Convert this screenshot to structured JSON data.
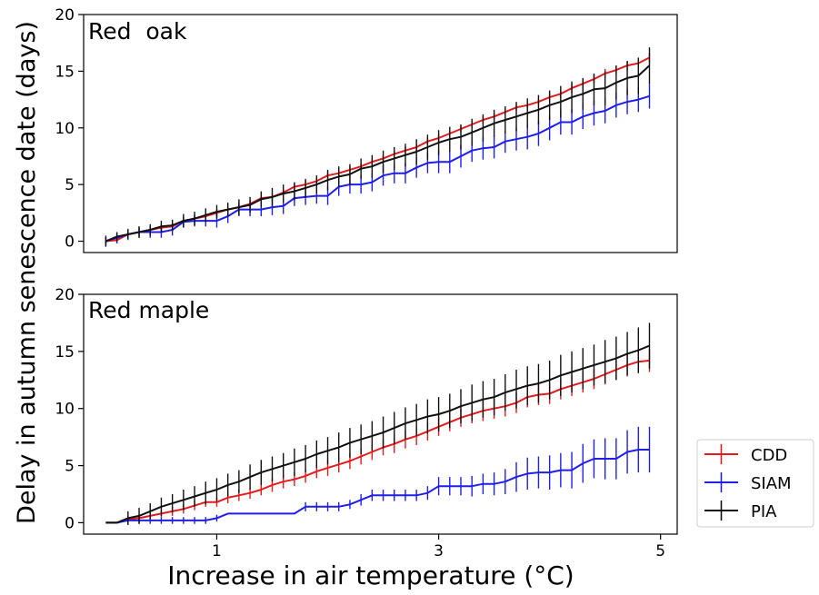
{
  "chart_data": [
    {
      "type": "line",
      "title": "Red  oak",
      "xlabel": "Increase in air temperature (°C)",
      "ylabel": "Delay in autumn senescence date (days)",
      "xlim": [
        -0.2,
        5.15
      ],
      "ylim": [
        -1,
        20
      ],
      "yticks": [
        0,
        5,
        10,
        15,
        20
      ],
      "grid": false,
      "error_bars": true,
      "series": [
        {
          "name": "CDD",
          "color": "#e41a1c",
          "x": [
            0.0,
            0.1,
            0.2,
            0.3,
            0.4,
            0.5,
            0.6,
            0.7,
            0.8,
            0.9,
            1.0,
            1.1,
            1.2,
            1.3,
            1.4,
            1.5,
            1.6,
            1.7,
            1.8,
            1.9,
            2.0,
            2.1,
            2.2,
            2.3,
            2.4,
            2.5,
            2.6,
            2.7,
            2.8,
            2.9,
            3.0,
            3.1,
            3.2,
            3.3,
            3.4,
            3.5,
            3.6,
            3.7,
            3.8,
            3.9,
            4.0,
            4.1,
            4.2,
            4.3,
            4.4,
            4.5,
            4.6,
            4.7,
            4.8,
            4.9
          ],
          "y": [
            0.0,
            0.1,
            0.6,
            0.8,
            1.0,
            1.2,
            1.3,
            1.8,
            2.0,
            2.2,
            2.5,
            2.8,
            3.0,
            3.3,
            3.8,
            3.9,
            4.3,
            4.8,
            5.0,
            5.3,
            5.8,
            6.0,
            6.3,
            6.6,
            7.0,
            7.3,
            7.7,
            8.0,
            8.3,
            8.8,
            9.1,
            9.5,
            9.9,
            10.3,
            10.7,
            11.0,
            11.4,
            11.8,
            12.0,
            12.3,
            12.7,
            13.0,
            13.5,
            13.9,
            14.3,
            14.8,
            15.1,
            15.5,
            15.7,
            16.2
          ],
          "err": [
            0.3,
            0.3,
            0.3,
            0.3,
            0.3,
            0.3,
            0.3,
            0.3,
            0.3,
            0.3,
            0.3,
            0.3,
            0.3,
            0.3,
            0.3,
            0.3,
            0.3,
            0.3,
            0.3,
            0.3,
            0.3,
            0.3,
            0.3,
            0.3,
            0.3,
            0.3,
            0.3,
            0.3,
            0.3,
            0.3,
            0.3,
            0.3,
            0.3,
            0.3,
            0.3,
            0.3,
            0.3,
            0.3,
            0.3,
            0.3,
            0.4,
            0.4,
            0.4,
            0.4,
            0.4,
            0.4,
            0.4,
            0.4,
            0.4,
            0.4
          ]
        },
        {
          "name": "SIAM",
          "color": "#1f1fe8",
          "x": [
            0.0,
            0.1,
            0.2,
            0.3,
            0.4,
            0.5,
            0.6,
            0.7,
            0.8,
            0.9,
            1.0,
            1.1,
            1.2,
            1.3,
            1.4,
            1.5,
            1.6,
            1.7,
            1.8,
            1.9,
            2.0,
            2.1,
            2.2,
            2.3,
            2.4,
            2.5,
            2.6,
            2.7,
            2.8,
            2.9,
            3.0,
            3.1,
            3.2,
            3.3,
            3.4,
            3.5,
            3.6,
            3.7,
            3.8,
            3.9,
            4.0,
            4.1,
            4.2,
            4.3,
            4.4,
            4.5,
            4.6,
            4.7,
            4.8,
            4.9
          ],
          "y": [
            0.0,
            0.3,
            0.6,
            0.8,
            0.8,
            0.8,
            1.0,
            1.7,
            1.8,
            1.8,
            1.8,
            2.2,
            2.8,
            2.8,
            2.8,
            3.0,
            3.1,
            3.8,
            3.9,
            4.0,
            4.0,
            4.8,
            5.0,
            5.0,
            5.2,
            5.8,
            6.0,
            6.0,
            6.5,
            6.9,
            7.0,
            7.0,
            7.5,
            8.0,
            8.2,
            8.3,
            8.8,
            9.0,
            9.2,
            9.5,
            10.0,
            10.5,
            10.5,
            11.0,
            11.3,
            11.5,
            12.0,
            12.3,
            12.5,
            12.8
          ],
          "err": [
            0.5,
            0.5,
            0.5,
            0.5,
            0.5,
            0.5,
            0.5,
            0.5,
            0.5,
            0.5,
            0.6,
            0.6,
            0.6,
            0.6,
            0.6,
            0.7,
            0.7,
            0.7,
            0.7,
            0.7,
            0.8,
            0.8,
            0.8,
            0.8,
            0.8,
            0.9,
            0.9,
            0.9,
            0.9,
            0.9,
            1.0,
            1.0,
            1.0,
            1.0,
            1.0,
            1.0,
            1.0,
            1.0,
            1.1,
            1.1,
            1.1,
            1.1,
            1.1,
            1.1,
            1.1,
            1.1,
            1.1,
            1.1,
            1.1,
            1.1
          ]
        },
        {
          "name": "PIA",
          "color": "#111111",
          "x": [
            0.0,
            0.1,
            0.2,
            0.3,
            0.4,
            0.5,
            0.6,
            0.7,
            0.8,
            0.9,
            1.0,
            1.1,
            1.2,
            1.3,
            1.4,
            1.5,
            1.6,
            1.7,
            1.8,
            1.9,
            2.0,
            2.1,
            2.2,
            2.3,
            2.4,
            2.5,
            2.6,
            2.7,
            2.8,
            2.9,
            3.0,
            3.1,
            3.2,
            3.3,
            3.4,
            3.5,
            3.6,
            3.7,
            3.8,
            3.9,
            4.0,
            4.1,
            4.2,
            4.3,
            4.4,
            4.5,
            4.6,
            4.7,
            4.8,
            4.9
          ],
          "y": [
            0.0,
            0.4,
            0.6,
            0.8,
            1.0,
            1.3,
            1.4,
            1.8,
            2.0,
            2.3,
            2.6,
            2.8,
            3.0,
            3.2,
            3.7,
            3.9,
            4.2,
            4.4,
            4.7,
            5.0,
            5.4,
            5.7,
            5.9,
            6.4,
            6.6,
            7.0,
            7.3,
            7.6,
            7.9,
            8.3,
            8.7,
            9.0,
            9.2,
            9.6,
            10.0,
            10.4,
            10.7,
            11.0,
            11.3,
            11.6,
            12.0,
            12.3,
            12.7,
            13.0,
            13.4,
            13.5,
            14.0,
            14.4,
            14.6,
            15.5
          ],
          "err": [
            0.4,
            0.4,
            0.4,
            0.5,
            0.5,
            0.5,
            0.5,
            0.6,
            0.6,
            0.6,
            0.6,
            0.6,
            0.7,
            0.7,
            0.7,
            0.8,
            0.8,
            0.8,
            0.8,
            0.8,
            0.9,
            0.9,
            0.9,
            0.9,
            1.0,
            1.0,
            1.0,
            1.0,
            1.1,
            1.1,
            1.1,
            1.1,
            1.1,
            1.2,
            1.2,
            1.2,
            1.2,
            1.3,
            1.3,
            1.3,
            1.3,
            1.4,
            1.4,
            1.4,
            1.4,
            1.5,
            1.5,
            1.5,
            1.6,
            1.6
          ]
        }
      ]
    },
    {
      "type": "line",
      "title": "Red maple",
      "xlabel": "Increase in air temperature (°C)",
      "ylabel": "Delay in autumn senescence date (days)",
      "xlim": [
        -0.2,
        5.15
      ],
      "ylim": [
        -1,
        20
      ],
      "xticks": [
        1,
        3,
        5
      ],
      "yticks": [
        0,
        5,
        10,
        15,
        20
      ],
      "grid": false,
      "error_bars": true,
      "legend_position": "outside-right",
      "legend": [
        "CDD",
        "SIAM",
        "PIA"
      ],
      "series": [
        {
          "name": "CDD",
          "color": "#e41a1c",
          "x": [
            0.0,
            0.1,
            0.2,
            0.3,
            0.4,
            0.5,
            0.6,
            0.7,
            0.8,
            0.9,
            1.0,
            1.1,
            1.2,
            1.3,
            1.4,
            1.5,
            1.6,
            1.7,
            1.8,
            1.9,
            2.0,
            2.1,
            2.2,
            2.3,
            2.4,
            2.5,
            2.6,
            2.7,
            2.8,
            2.9,
            3.0,
            3.1,
            3.2,
            3.3,
            3.4,
            3.5,
            3.6,
            3.7,
            3.8,
            3.9,
            4.0,
            4.1,
            4.2,
            4.3,
            4.4,
            4.5,
            4.6,
            4.7,
            4.8,
            4.9
          ],
          "y": [
            0.0,
            0.0,
            0.3,
            0.4,
            0.6,
            0.8,
            1.0,
            1.2,
            1.5,
            1.8,
            1.8,
            2.2,
            2.4,
            2.6,
            2.9,
            3.3,
            3.6,
            3.8,
            4.1,
            4.5,
            4.8,
            5.1,
            5.4,
            5.8,
            6.2,
            6.6,
            6.9,
            7.3,
            7.6,
            8.0,
            8.4,
            8.8,
            9.2,
            9.5,
            9.8,
            10.0,
            10.2,
            10.5,
            11.0,
            11.2,
            11.3,
            11.7,
            12.0,
            12.3,
            12.6,
            13.0,
            13.4,
            13.8,
            14.1,
            14.2
          ],
          "err": [
            0.0,
            0.0,
            0.3,
            0.3,
            0.3,
            0.3,
            0.4,
            0.4,
            0.4,
            0.4,
            0.4,
            0.5,
            0.5,
            0.5,
            0.5,
            0.6,
            0.6,
            0.6,
            0.6,
            0.6,
            0.7,
            0.7,
            0.7,
            0.7,
            0.7,
            0.7,
            0.8,
            0.8,
            0.8,
            0.8,
            0.8,
            0.8,
            0.8,
            0.8,
            0.9,
            0.9,
            0.9,
            0.9,
            0.9,
            0.9,
            0.9,
            0.9,
            0.9,
            0.9,
            0.9,
            0.9,
            0.9,
            1.0,
            1.0,
            1.0
          ]
        },
        {
          "name": "SIAM",
          "color": "#1f1fe8",
          "x": [
            0.0,
            0.1,
            0.2,
            0.3,
            0.4,
            0.5,
            0.6,
            0.7,
            0.8,
            0.9,
            1.0,
            1.1,
            1.2,
            1.3,
            1.4,
            1.5,
            1.6,
            1.7,
            1.8,
            1.9,
            2.0,
            2.1,
            2.2,
            2.3,
            2.4,
            2.5,
            2.6,
            2.7,
            2.8,
            2.9,
            3.0,
            3.1,
            3.2,
            3.3,
            3.4,
            3.5,
            3.6,
            3.7,
            3.8,
            3.9,
            4.0,
            4.1,
            4.2,
            4.3,
            4.4,
            4.5,
            4.6,
            4.7,
            4.8,
            4.9
          ],
          "y": [
            0.0,
            0.0,
            0.2,
            0.2,
            0.2,
            0.2,
            0.2,
            0.2,
            0.2,
            0.2,
            0.4,
            0.8,
            0.8,
            0.8,
            0.8,
            0.8,
            0.8,
            0.8,
            1.4,
            1.4,
            1.4,
            1.4,
            1.6,
            2.0,
            2.4,
            2.4,
            2.4,
            2.4,
            2.4,
            2.6,
            3.2,
            3.2,
            3.2,
            3.2,
            3.4,
            3.4,
            3.6,
            4.0,
            4.3,
            4.4,
            4.4,
            4.6,
            4.6,
            5.2,
            5.6,
            5.6,
            5.6,
            6.2,
            6.4,
            6.4
          ],
          "err": [
            0.0,
            0.0,
            0.3,
            0.3,
            0.3,
            0.3,
            0.3,
            0.3,
            0.3,
            0.3,
            0.3,
            0.0,
            0.0,
            0.0,
            0.0,
            0.0,
            0.0,
            0.0,
            0.4,
            0.4,
            0.4,
            0.4,
            0.4,
            0.5,
            0.5,
            0.5,
            0.5,
            0.5,
            0.5,
            0.6,
            0.8,
            0.8,
            0.8,
            0.9,
            0.9,
            1.0,
            1.1,
            1.3,
            1.4,
            1.4,
            1.5,
            1.5,
            1.6,
            1.7,
            1.7,
            1.8,
            1.8,
            1.9,
            2.0,
            2.0
          ]
        },
        {
          "name": "PIA",
          "color": "#111111",
          "x": [
            0.0,
            0.1,
            0.2,
            0.3,
            0.4,
            0.5,
            0.6,
            0.7,
            0.8,
            0.9,
            1.0,
            1.1,
            1.2,
            1.3,
            1.4,
            1.5,
            1.6,
            1.7,
            1.8,
            1.9,
            2.0,
            2.1,
            2.2,
            2.3,
            2.4,
            2.5,
            2.6,
            2.7,
            2.8,
            2.9,
            3.0,
            3.1,
            3.2,
            3.3,
            3.4,
            3.5,
            3.6,
            3.7,
            3.8,
            3.9,
            4.0,
            4.1,
            4.2,
            4.3,
            4.4,
            4.5,
            4.6,
            4.7,
            4.8,
            4.9
          ],
          "y": [
            0.0,
            0.0,
            0.4,
            0.6,
            1.0,
            1.4,
            1.7,
            2.0,
            2.3,
            2.6,
            2.9,
            3.3,
            3.6,
            4.0,
            4.4,
            4.7,
            5.0,
            5.3,
            5.6,
            6.0,
            6.3,
            6.6,
            7.0,
            7.3,
            7.6,
            7.9,
            8.3,
            8.7,
            9.0,
            9.3,
            9.5,
            9.8,
            10.2,
            10.5,
            10.8,
            11.0,
            11.4,
            11.7,
            12.0,
            12.2,
            12.5,
            12.9,
            13.2,
            13.5,
            13.8,
            14.1,
            14.4,
            14.8,
            15.1,
            15.5
          ],
          "err": [
            0.0,
            0.0,
            0.6,
            0.7,
            0.7,
            0.8,
            0.8,
            0.9,
            0.9,
            1.0,
            1.0,
            1.0,
            1.0,
            1.1,
            1.1,
            1.1,
            1.1,
            1.2,
            1.2,
            1.2,
            1.2,
            1.3,
            1.3,
            1.3,
            1.3,
            1.4,
            1.4,
            1.4,
            1.4,
            1.5,
            1.5,
            1.5,
            1.5,
            1.6,
            1.6,
            1.6,
            1.6,
            1.7,
            1.7,
            1.7,
            1.7,
            1.8,
            1.8,
            1.8,
            1.8,
            1.9,
            1.9,
            1.9,
            2.0,
            2.0
          ]
        }
      ]
    }
  ]
}
